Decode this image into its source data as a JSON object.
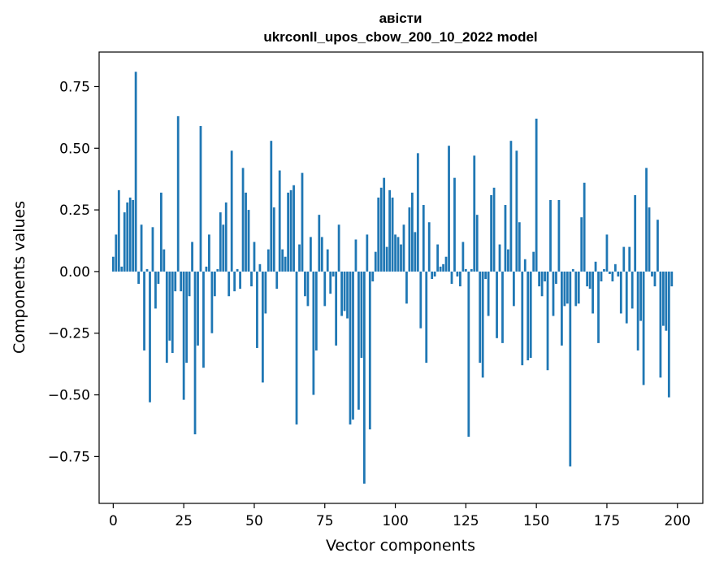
{
  "chart_data": {
    "type": "bar",
    "title_line1": "авісти",
    "title_line2": "ukrconll_upos_cbow_200_10_2022 model",
    "xlabel": "Vector components",
    "ylabel": "Components values",
    "xlim": [
      -5,
      209
    ],
    "ylim": [
      -0.94,
      0.89
    ],
    "xticks": [
      0,
      25,
      50,
      75,
      100,
      125,
      150,
      175,
      200
    ],
    "yticks": [
      -0.75,
      -0.5,
      -0.25,
      0.0,
      0.25,
      0.5,
      0.75
    ],
    "ytick_labels": [
      "−0.75",
      "−0.50",
      "−0.25",
      "0.00",
      "0.25",
      "0.50",
      "0.75"
    ],
    "bar_color": "#1f77b4",
    "grid": false,
    "values": [
      0.06,
      0.15,
      0.33,
      0.02,
      0.24,
      0.28,
      0.3,
      0.29,
      0.81,
      -0.05,
      0.19,
      -0.32,
      0.01,
      -0.53,
      0.18,
      -0.15,
      -0.05,
      0.32,
      0.09,
      -0.37,
      -0.28,
      -0.33,
      -0.08,
      0.63,
      -0.08,
      -0.52,
      -0.37,
      -0.1,
      0.12,
      -0.66,
      -0.3,
      0.59,
      -0.39,
      0.02,
      0.15,
      -0.25,
      -0.1,
      0.01,
      0.24,
      0.19,
      0.28,
      -0.1,
      0.49,
      -0.08,
      0.01,
      -0.07,
      0.42,
      0.32,
      0.25,
      -0.06,
      0.12,
      -0.31,
      0.03,
      -0.45,
      -0.17,
      0.09,
      0.53,
      0.26,
      -0.07,
      0.41,
      0.09,
      0.06,
      0.32,
      0.33,
      0.35,
      -0.62,
      0.11,
      0.4,
      -0.1,
      -0.14,
      0.14,
      -0.5,
      -0.32,
      0.23,
      0.14,
      -0.14,
      0.09,
      -0.09,
      -0.02,
      -0.3,
      0.19,
      -0.18,
      -0.16,
      -0.19,
      -0.62,
      -0.6,
      0.13,
      -0.56,
      -0.35,
      -0.86,
      0.15,
      -0.64,
      -0.04,
      0.08,
      0.3,
      0.34,
      0.38,
      0.1,
      0.33,
      0.3,
      0.15,
      0.14,
      0.11,
      0.19,
      -0.13,
      0.26,
      0.32,
      0.16,
      0.48,
      -0.23,
      0.27,
      -0.37,
      0.2,
      -0.03,
      -0.02,
      0.11,
      0.02,
      0.03,
      0.06,
      0.51,
      -0.05,
      0.38,
      -0.02,
      -0.06,
      0.12,
      0.01,
      -0.67,
      0.01,
      0.47,
      0.23,
      -0.37,
      -0.43,
      -0.03,
      -0.18,
      0.31,
      0.34,
      -0.27,
      0.11,
      -0.29,
      0.27,
      0.09,
      0.53,
      -0.14,
      0.49,
      0.2,
      -0.38,
      0.05,
      -0.36,
      -0.35,
      0.08,
      0.62,
      -0.06,
      -0.1,
      -0.04,
      -0.4,
      0.29,
      -0.18,
      -0.05,
      0.29,
      -0.3,
      -0.14,
      -0.13,
      -0.79,
      0.01,
      -0.14,
      -0.13,
      0.22,
      0.36,
      -0.06,
      -0.07,
      -0.17,
      0.04,
      -0.29,
      -0.04,
      0.01,
      0.15,
      -0.01,
      -0.04,
      0.03,
      -0.02,
      -0.17,
      0.1,
      -0.21,
      0.1,
      -0.15,
      0.31,
      -0.32,
      -0.2,
      -0.46,
      0.42,
      0.26,
      -0.02,
      -0.06,
      0.21,
      -0.43,
      -0.22,
      -0.24,
      -0.51,
      -0.06
    ]
  }
}
